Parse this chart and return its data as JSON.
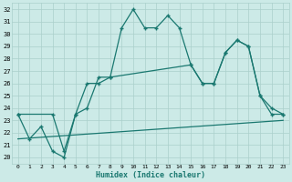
{
  "xlabel": "Humidex (Indice chaleur)",
  "xlim": [
    -0.5,
    23.5
  ],
  "ylim": [
    19.5,
    32.5
  ],
  "bg_color": "#cceae7",
  "line_color": "#1a7870",
  "grid_color": "#aacfcb",
  "line1_x": [
    0,
    1,
    2,
    3,
    4,
    5,
    6,
    7,
    8,
    9,
    10,
    11,
    12,
    13,
    14,
    15,
    16,
    17,
    18,
    19,
    20,
    21,
    22,
    23
  ],
  "line1_y": [
    23.5,
    21.5,
    22.5,
    20.5,
    20.0,
    23.5,
    26.0,
    26.0,
    26.5,
    30.5,
    32.0,
    30.5,
    30.5,
    31.5,
    30.5,
    27.5,
    26.0,
    26.0,
    28.5,
    29.5,
    29.0,
    25.0,
    23.5,
    23.5
  ],
  "line2_x": [
    0,
    3,
    4,
    5,
    6,
    7,
    8,
    15,
    16,
    17,
    18,
    19,
    20,
    21,
    22,
    23
  ],
  "line2_y": [
    23.5,
    23.5,
    20.5,
    23.5,
    24.0,
    26.5,
    26.5,
    27.5,
    26.0,
    26.0,
    28.5,
    29.5,
    29.0,
    25.0,
    24.0,
    23.5
  ],
  "line3_x": [
    0,
    23
  ],
  "line3_y": [
    21.5,
    23.0
  ]
}
